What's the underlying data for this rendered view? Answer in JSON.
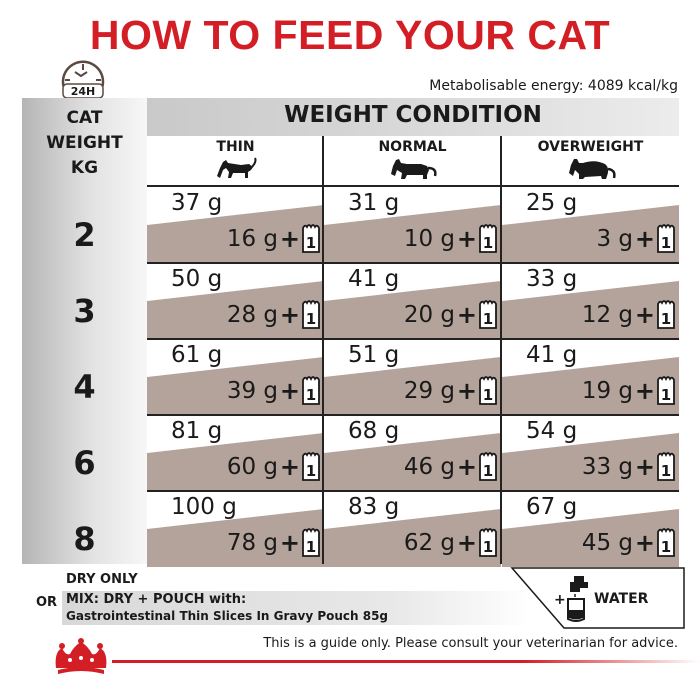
{
  "title": "HOW TO FEED YOUR CAT",
  "clock_label": "24H",
  "energy": "Metabolisable energy: 4089 kcal/kg",
  "cat_weight_header": [
    "CAT",
    "WEIGHT",
    "KG"
  ],
  "weight_condition": "WEIGHT CONDITION",
  "conditions": [
    "THIN",
    "NORMAL",
    "OVERWEIGHT"
  ],
  "rows": [
    {
      "kg": "2",
      "cells": [
        {
          "dry": "37 g",
          "mix": "16 g"
        },
        {
          "dry": "31 g",
          "mix": "10 g"
        },
        {
          "dry": "25 g",
          "mix": "3 g"
        }
      ]
    },
    {
      "kg": "3",
      "cells": [
        {
          "dry": "50 g",
          "mix": "28 g"
        },
        {
          "dry": "41 g",
          "mix": "20 g"
        },
        {
          "dry": "33 g",
          "mix": "12 g"
        }
      ]
    },
    {
      "kg": "4",
      "cells": [
        {
          "dry": "61 g",
          "mix": "39 g"
        },
        {
          "dry": "51 g",
          "mix": "29 g"
        },
        {
          "dry": "41 g",
          "mix": "19 g"
        }
      ]
    },
    {
      "kg": "6",
      "cells": [
        {
          "dry": "81 g",
          "mix": "60 g"
        },
        {
          "dry": "68 g",
          "mix": "46 g"
        },
        {
          "dry": "54 g",
          "mix": "33 g"
        }
      ]
    },
    {
      "kg": "8",
      "cells": [
        {
          "dry": "100 g",
          "mix": "78 g"
        },
        {
          "dry": "83 g",
          "mix": "62 g"
        },
        {
          "dry": "67 g",
          "mix": "45 g"
        }
      ]
    }
  ],
  "plus_sign": "+",
  "pouch_count": "1",
  "legend": {
    "dry_only": "DRY ONLY",
    "or": "OR",
    "mix_title": "MIX: DRY + POUCH with:",
    "mix_detail": "Gastrointestinal Thin Slices In Gravy Pouch 85g",
    "water_plus": "+",
    "water": "WATER"
  },
  "guide": "This is a guide only. Please consult your veterinarian for advice.",
  "colors": {
    "title_red": "#d41e25",
    "band_taupe": "#b3a39a"
  }
}
